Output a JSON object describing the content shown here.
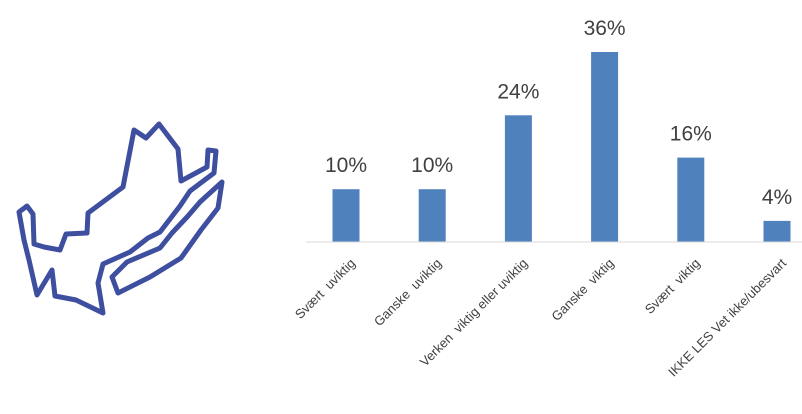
{
  "chart_data": {
    "type": "bar",
    "categories": [
      "Svært  uviktig",
      "Ganske  uviktig",
      "Verken  viktig eller uviktig",
      "Ganske  viktig",
      "Svært  viktig",
      "IKKE LES Vet ikke/ubesvart"
    ],
    "values": [
      10,
      10,
      24,
      36,
      16,
      4
    ],
    "value_labels": [
      "10%",
      "10%",
      "24%",
      "36%",
      "16%",
      "4%"
    ],
    "unit": "%",
    "ylim": [
      0,
      36
    ],
    "grid": false,
    "legend": "none",
    "bar_color": "#4f81bd",
    "axis_color": "#d9d9d9",
    "text_color": "#404040"
  },
  "decoration": {
    "icon": "hands-icon",
    "icon_color": "#3f4fa0"
  }
}
